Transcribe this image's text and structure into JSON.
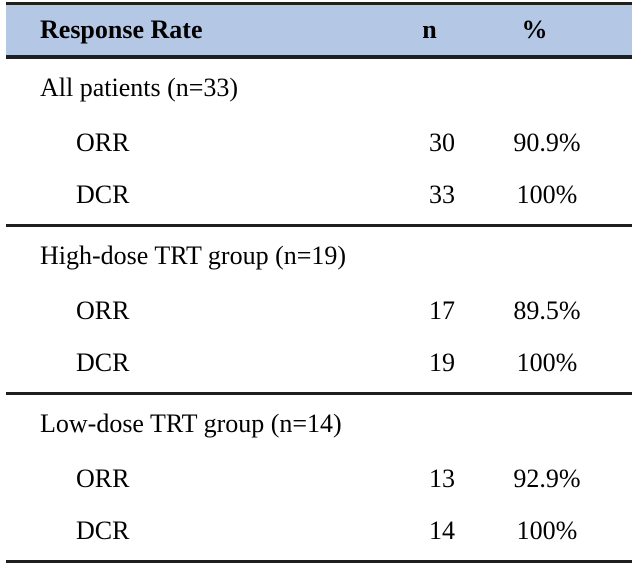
{
  "table": {
    "header": {
      "col_label": "Response Rate",
      "col_n": "n",
      "col_pct": "%"
    },
    "sections": [
      {
        "group": "All patients (n=33)",
        "rows": [
          {
            "label": "ORR",
            "n": "30",
            "pct": "90.9%"
          },
          {
            "label": "DCR",
            "n": "33",
            "pct": "100%"
          }
        ]
      },
      {
        "group": "High-dose TRT group (n=19)",
        "rows": [
          {
            "label": "ORR",
            "n": "17",
            "pct": "89.5%"
          },
          {
            "label": "DCR",
            "n": "19",
            "pct": "100%"
          }
        ]
      },
      {
        "group": "Low-dose TRT group (n=14)",
        "rows": [
          {
            "label": "ORR",
            "n": "13",
            "pct": "92.9%"
          },
          {
            "label": "DCR",
            "n": "14",
            "pct": "100%"
          }
        ]
      }
    ],
    "colors": {
      "header_bg": "#B4C7E4",
      "rule": "#1f1f1f",
      "text": "#000000",
      "background": "#ffffff"
    }
  }
}
